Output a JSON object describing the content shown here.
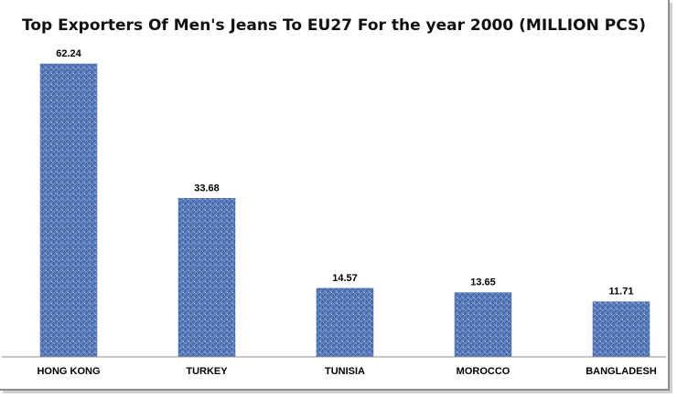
{
  "chart_data": {
    "type": "bar",
    "title": "Top Exporters Of Men's Jeans To EU27 For the year 2000 (MILLION PCS)",
    "categories": [
      "HONG KONG",
      "TURKEY",
      "TUNISIA",
      "MOROCCO",
      "BANGLADESH"
    ],
    "values": [
      62.24,
      33.68,
      14.57,
      13.65,
      11.71
    ],
    "ylim": [
      0,
      70
    ],
    "grid": false,
    "legend": "none",
    "bar_color": "#5b7fbf",
    "bar_texture": "denim"
  }
}
